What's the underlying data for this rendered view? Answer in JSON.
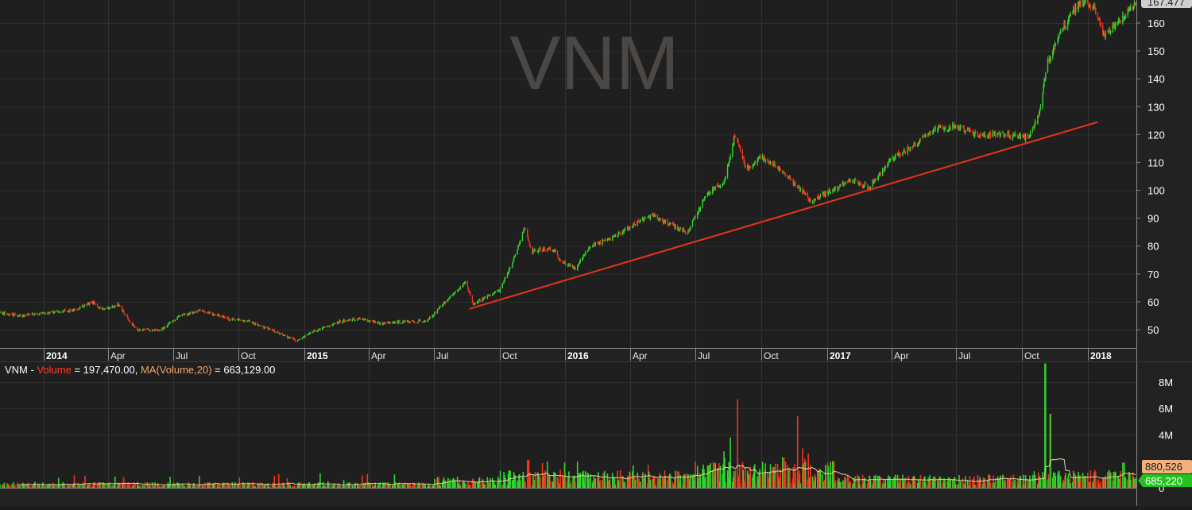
{
  "chart_data": [
    {
      "type": "candlestick",
      "title": "VNM",
      "ylim": [
        40,
        170
      ],
      "y_ticks": [
        50,
        60,
        70,
        80,
        90,
        100,
        110,
        120,
        130,
        140,
        150,
        160
      ],
      "last_price_label": "167.477",
      "x_ticks": [
        {
          "label": "2014",
          "date": "2014-01-01",
          "bold": true
        },
        {
          "label": "Apr",
          "date": "2014-04-01"
        },
        {
          "label": "Jul",
          "date": "2014-07-01"
        },
        {
          "label": "Oct",
          "date": "2014-10-01"
        },
        {
          "label": "2015",
          "date": "2015-01-01",
          "bold": true
        },
        {
          "label": "Apr",
          "date": "2015-04-01"
        },
        {
          "label": "Jul",
          "date": "2015-07-01"
        },
        {
          "label": "Oct",
          "date": "2015-10-01"
        },
        {
          "label": "2016",
          "date": "2016-01-01",
          "bold": true
        },
        {
          "label": "Apr",
          "date": "2016-04-01"
        },
        {
          "label": "Jul",
          "date": "2016-07-01"
        },
        {
          "label": "Oct",
          "date": "2016-10-01"
        },
        {
          "label": "2017",
          "date": "2017-01-01",
          "bold": true
        },
        {
          "label": "Apr",
          "date": "2017-04-01"
        },
        {
          "label": "Jul",
          "date": "2017-07-01"
        },
        {
          "label": "Oct",
          "date": "2017-10-01"
        },
        {
          "label": "2018",
          "date": "2018-01-01",
          "bold": true
        }
      ],
      "x_range": [
        "2013-11-01",
        "2018-03-10"
      ],
      "price_path": [
        [
          "2013-11-01",
          56
        ],
        [
          "2013-12-01",
          55
        ],
        [
          "2014-01-01",
          56
        ],
        [
          "2014-02-15",
          57
        ],
        [
          "2014-03-10",
          60
        ],
        [
          "2014-03-25",
          57
        ],
        [
          "2014-04-15",
          59
        ],
        [
          "2014-05-10",
          50
        ],
        [
          "2014-06-15",
          50
        ],
        [
          "2014-07-10",
          55
        ],
        [
          "2014-08-10",
          57
        ],
        [
          "2014-09-15",
          54
        ],
        [
          "2014-10-15",
          53
        ],
        [
          "2014-11-15",
          50
        ],
        [
          "2014-12-20",
          46
        ],
        [
          "2015-01-20",
          50
        ],
        [
          "2015-02-20",
          53
        ],
        [
          "2015-03-20",
          54
        ],
        [
          "2015-04-20",
          52
        ],
        [
          "2015-05-20",
          53
        ],
        [
          "2015-06-20",
          53
        ],
        [
          "2015-07-10",
          58
        ],
        [
          "2015-07-25",
          62
        ],
        [
          "2015-08-15",
          67
        ],
        [
          "2015-08-25",
          59
        ],
        [
          "2015-09-15",
          62
        ],
        [
          "2015-10-01",
          64
        ],
        [
          "2015-10-20",
          75
        ],
        [
          "2015-11-05",
          87
        ],
        [
          "2015-11-15",
          78
        ],
        [
          "2015-12-01",
          79
        ],
        [
          "2015-12-15",
          79
        ],
        [
          "2015-12-25",
          75
        ],
        [
          "2016-01-15",
          72
        ],
        [
          "2016-02-05",
          80
        ],
        [
          "2016-03-01",
          82
        ],
        [
          "2016-04-01",
          87
        ],
        [
          "2016-05-01",
          91
        ],
        [
          "2016-06-01",
          87
        ],
        [
          "2016-06-20",
          85
        ],
        [
          "2016-07-15",
          98
        ],
        [
          "2016-08-10",
          103
        ],
        [
          "2016-08-25",
          120
        ],
        [
          "2016-09-10",
          108
        ],
        [
          "2016-10-01",
          112
        ],
        [
          "2016-10-20",
          109
        ],
        [
          "2016-11-10",
          104
        ],
        [
          "2016-12-10",
          96
        ],
        [
          "2017-01-01",
          99
        ],
        [
          "2017-02-01",
          104
        ],
        [
          "2017-03-01",
          101
        ],
        [
          "2017-04-01",
          111
        ],
        [
          "2017-05-01",
          116
        ],
        [
          "2017-06-01",
          122
        ],
        [
          "2017-07-01",
          123
        ],
        [
          "2017-08-01",
          120
        ],
        [
          "2017-09-01",
          120
        ],
        [
          "2017-10-10",
          119
        ],
        [
          "2017-10-25",
          128
        ],
        [
          "2017-11-05",
          145
        ],
        [
          "2017-11-20",
          155
        ],
        [
          "2017-12-10",
          164
        ],
        [
          "2017-12-25",
          168
        ],
        [
          "2018-01-10",
          165
        ],
        [
          "2018-01-25",
          155
        ],
        [
          "2018-02-10",
          160
        ],
        [
          "2018-03-10",
          167
        ]
      ],
      "trendline": {
        "start": [
          "2015-08-20",
          57.5
        ],
        "end": [
          "2018-01-15",
          124.5
        ],
        "color": "#e8341c"
      }
    },
    {
      "type": "bar",
      "title": "VNM",
      "legend": {
        "prefix": "VNM - ",
        "volume_label": "Volume",
        "volume_value": " = 197,470.00, ",
        "ma_label": "MA(Volume,20)",
        "ma_value": " = 663,129.00"
      },
      "ylim": [
        0,
        9500000
      ],
      "y_ticks": [
        {
          "label": "0",
          "value": 0
        },
        {
          "label": "4M",
          "value": 4000000
        },
        {
          "label": "6M",
          "value": 6000000
        },
        {
          "label": "8M",
          "value": 8000000
        }
      ],
      "ma_value_label": "880,526",
      "volume_value_label": "685,220",
      "volume_spikes": [
        [
          "2015-10-15",
          1300000
        ],
        [
          "2015-11-10",
          2100000
        ],
        [
          "2015-12-05",
          1300000
        ],
        [
          "2016-07-20",
          1700000
        ],
        [
          "2016-08-20",
          3800000
        ],
        [
          "2016-08-28",
          6700000
        ],
        [
          "2016-09-10",
          1500000
        ],
        [
          "2016-11-01",
          2300000
        ],
        [
          "2016-11-20",
          5400000
        ],
        [
          "2017-01-10",
          2000000
        ],
        [
          "2017-11-03",
          9400000
        ],
        [
          "2017-11-10",
          5600000
        ],
        [
          "2018-02-20",
          1900000
        ]
      ]
    }
  ],
  "colors": {
    "up": "#2fd62a",
    "down": "#f2361c",
    "trendline": "#e8341c",
    "ma_line": "#e0cfa8",
    "ma_badge": "#f3b07a",
    "volume_badge": "#25c21f",
    "background": "#222222"
  }
}
